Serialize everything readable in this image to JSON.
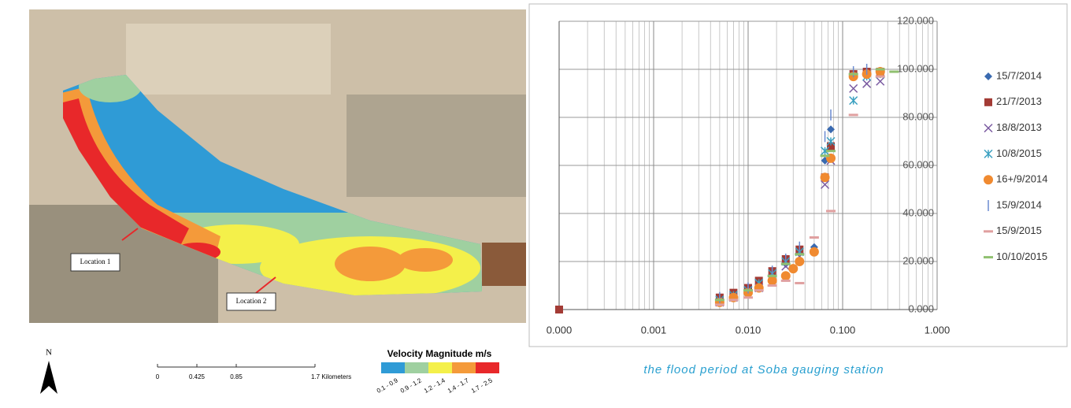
{
  "map": {
    "north": "N",
    "locations": [
      "Location 1",
      "Location 2"
    ],
    "scale_labels": [
      "0",
      "0.425",
      "0.85",
      "1.7 Kilometers"
    ],
    "legend": {
      "title": "Velocity Magnitude m/s",
      "items": [
        {
          "label": "0.1 - 0.9",
          "color": "#2f9bd6"
        },
        {
          "label": "0.9 - 1.2",
          "color": "#9fd0a0"
        },
        {
          "label": "1.2 - 1.4",
          "color": "#f4f04a"
        },
        {
          "label": "1.4 - 1.7",
          "color": "#f49a3a"
        },
        {
          "label": "1.7 - 2.5",
          "color": "#e8282a"
        }
      ]
    }
  },
  "chart_data": {
    "type": "scatter",
    "xscale": "log",
    "grid": true,
    "legend": "right",
    "xlim": [
      0.0001,
      1
    ],
    "ylim": [
      0,
      120
    ],
    "xticks": [
      {
        "value": 0.0001,
        "label": "0.000"
      },
      {
        "value": 0.001,
        "label": "0.001"
      },
      {
        "value": 0.01,
        "label": "0.010"
      },
      {
        "value": 0.1,
        "label": "0.100"
      },
      {
        "value": 1,
        "label": "1.000"
      }
    ],
    "yticks": [
      {
        "value": 0,
        "label": "0.000"
      },
      {
        "value": 20,
        "label": "20.000"
      },
      {
        "value": 40,
        "label": "40.000"
      },
      {
        "value": 60,
        "label": "60.000"
      },
      {
        "value": 80,
        "label": "80.000"
      },
      {
        "value": 100,
        "label": "100.000"
      },
      {
        "value": 120,
        "label": "120.000"
      }
    ],
    "series": [
      {
        "name": "15/7/2014",
        "color": "#3a6ab0",
        "marker": "diamond",
        "x": [
          0.005,
          0.007,
          0.01,
          0.013,
          0.018,
          0.025,
          0.035,
          0.05,
          0.065,
          0.075,
          0.13,
          0.18,
          0.25
        ],
        "values": [
          4,
          6,
          8,
          10,
          14,
          19,
          24,
          26,
          62,
          75,
          98,
          99,
          99
        ]
      },
      {
        "name": "21/7/2013",
        "color": "#a33b35",
        "marker": "square",
        "x": [
          0.0001,
          0.005,
          0.007,
          0.01,
          0.013,
          0.018,
          0.025,
          0.035,
          0.065,
          0.075,
          0.13,
          0.18,
          0.25
        ],
        "values": [
          0,
          5,
          7,
          9,
          12,
          16,
          21,
          25,
          55,
          68,
          98,
          99,
          99
        ]
      },
      {
        "name": "18/8/2013",
        "color": "#7a5aa0",
        "marker": "x",
        "x": [
          0.005,
          0.007,
          0.01,
          0.013,
          0.018,
          0.025,
          0.035,
          0.065,
          0.075,
          0.13,
          0.18,
          0.25
        ],
        "values": [
          3,
          5,
          8,
          9,
          13,
          18,
          22,
          52,
          62,
          92,
          94,
          95
        ]
      },
      {
        "name": "10/8/2015",
        "color": "#3aa0c0",
        "marker": "asterisk",
        "x": [
          0.005,
          0.007,
          0.01,
          0.013,
          0.018,
          0.025,
          0.035,
          0.065,
          0.075,
          0.13,
          0.18,
          0.25
        ],
        "values": [
          4,
          6,
          8,
          11,
          15,
          20,
          24,
          66,
          70,
          87,
          97,
          98
        ]
      },
      {
        "name": "16+/9/2014",
        "color": "#f08a30",
        "marker": "circle",
        "x": [
          0.005,
          0.007,
          0.01,
          0.013,
          0.018,
          0.025,
          0.03,
          0.035,
          0.05,
          0.065,
          0.075,
          0.13,
          0.18,
          0.25
        ],
        "values": [
          3,
          5,
          7,
          9,
          12,
          14,
          17,
          20,
          24,
          55,
          63,
          97,
          98,
          99
        ]
      },
      {
        "name": "15/9/2014",
        "color": "#6a8ad0",
        "marker": "plus",
        "x": [
          0.005,
          0.01,
          0.018,
          0.025,
          0.035,
          0.065,
          0.075,
          0.13,
          0.18
        ],
        "values": [
          5,
          9,
          16,
          21,
          26,
          72,
          81,
          99,
          100
        ]
      },
      {
        "name": "15/9/2015",
        "color": "#e0a0a0",
        "marker": "dash",
        "x": [
          0.005,
          0.007,
          0.01,
          0.013,
          0.018,
          0.025,
          0.035,
          0.05,
          0.075,
          0.13,
          0.25
        ],
        "values": [
          2,
          4,
          5,
          8,
          10,
          12,
          11,
          30,
          41,
          81,
          97
        ]
      },
      {
        "name": "10/10/2015",
        "color": "#90c070",
        "marker": "dash",
        "x": [
          0.005,
          0.01,
          0.018,
          0.025,
          0.035,
          0.065,
          0.075,
          0.13,
          0.25,
          0.35
        ],
        "values": [
          4,
          8,
          14,
          19,
          23,
          64,
          66,
          98,
          100,
          99
        ]
      }
    ]
  },
  "caption": "the flood period at Soba gauging station"
}
